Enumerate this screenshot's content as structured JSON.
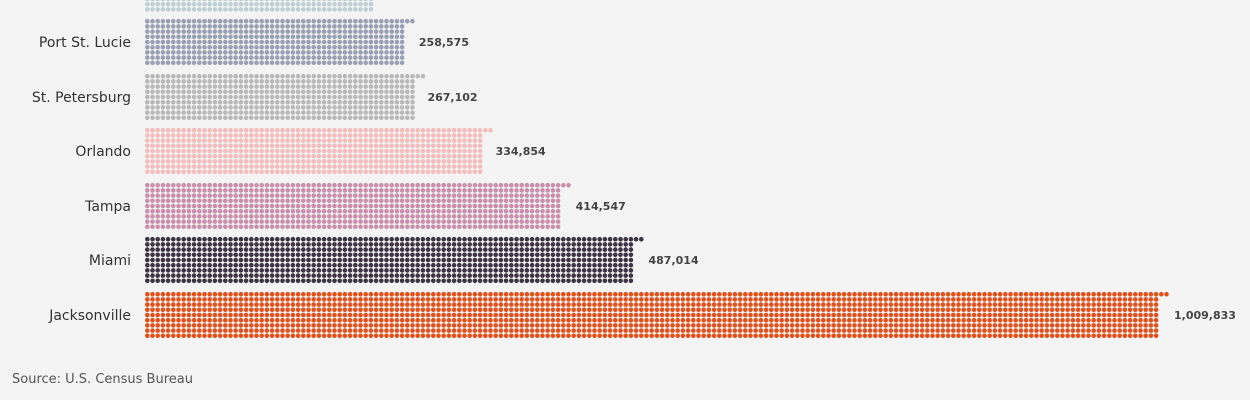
{
  "chart_data": {
    "type": "bar",
    "orientation": "horizontal",
    "style": "dot-matrix bars",
    "categories": [
      "Port St. Lucie",
      "St. Petersburg",
      "Orlando",
      "Tampa",
      "Miami",
      "Jacksonville"
    ],
    "values": [
      258575,
      267102,
      334854,
      414547,
      487014,
      1009833
    ],
    "value_labels": [
      "258,575",
      "267,102",
      "334,854",
      "414,547",
      "487,014",
      "1,009,833"
    ],
    "colors": [
      "#9aa0b4",
      "#b9b9b9",
      "#f4bcbc",
      "#c98fac",
      "#3d3345",
      "#e2511b"
    ],
    "partial_top_bar_color": "#bfcfd7",
    "xlim": [
      0,
      1009833
    ],
    "grid": false,
    "legend": "none"
  },
  "footer": {
    "source": "Source: U.S. Census Bureau"
  }
}
